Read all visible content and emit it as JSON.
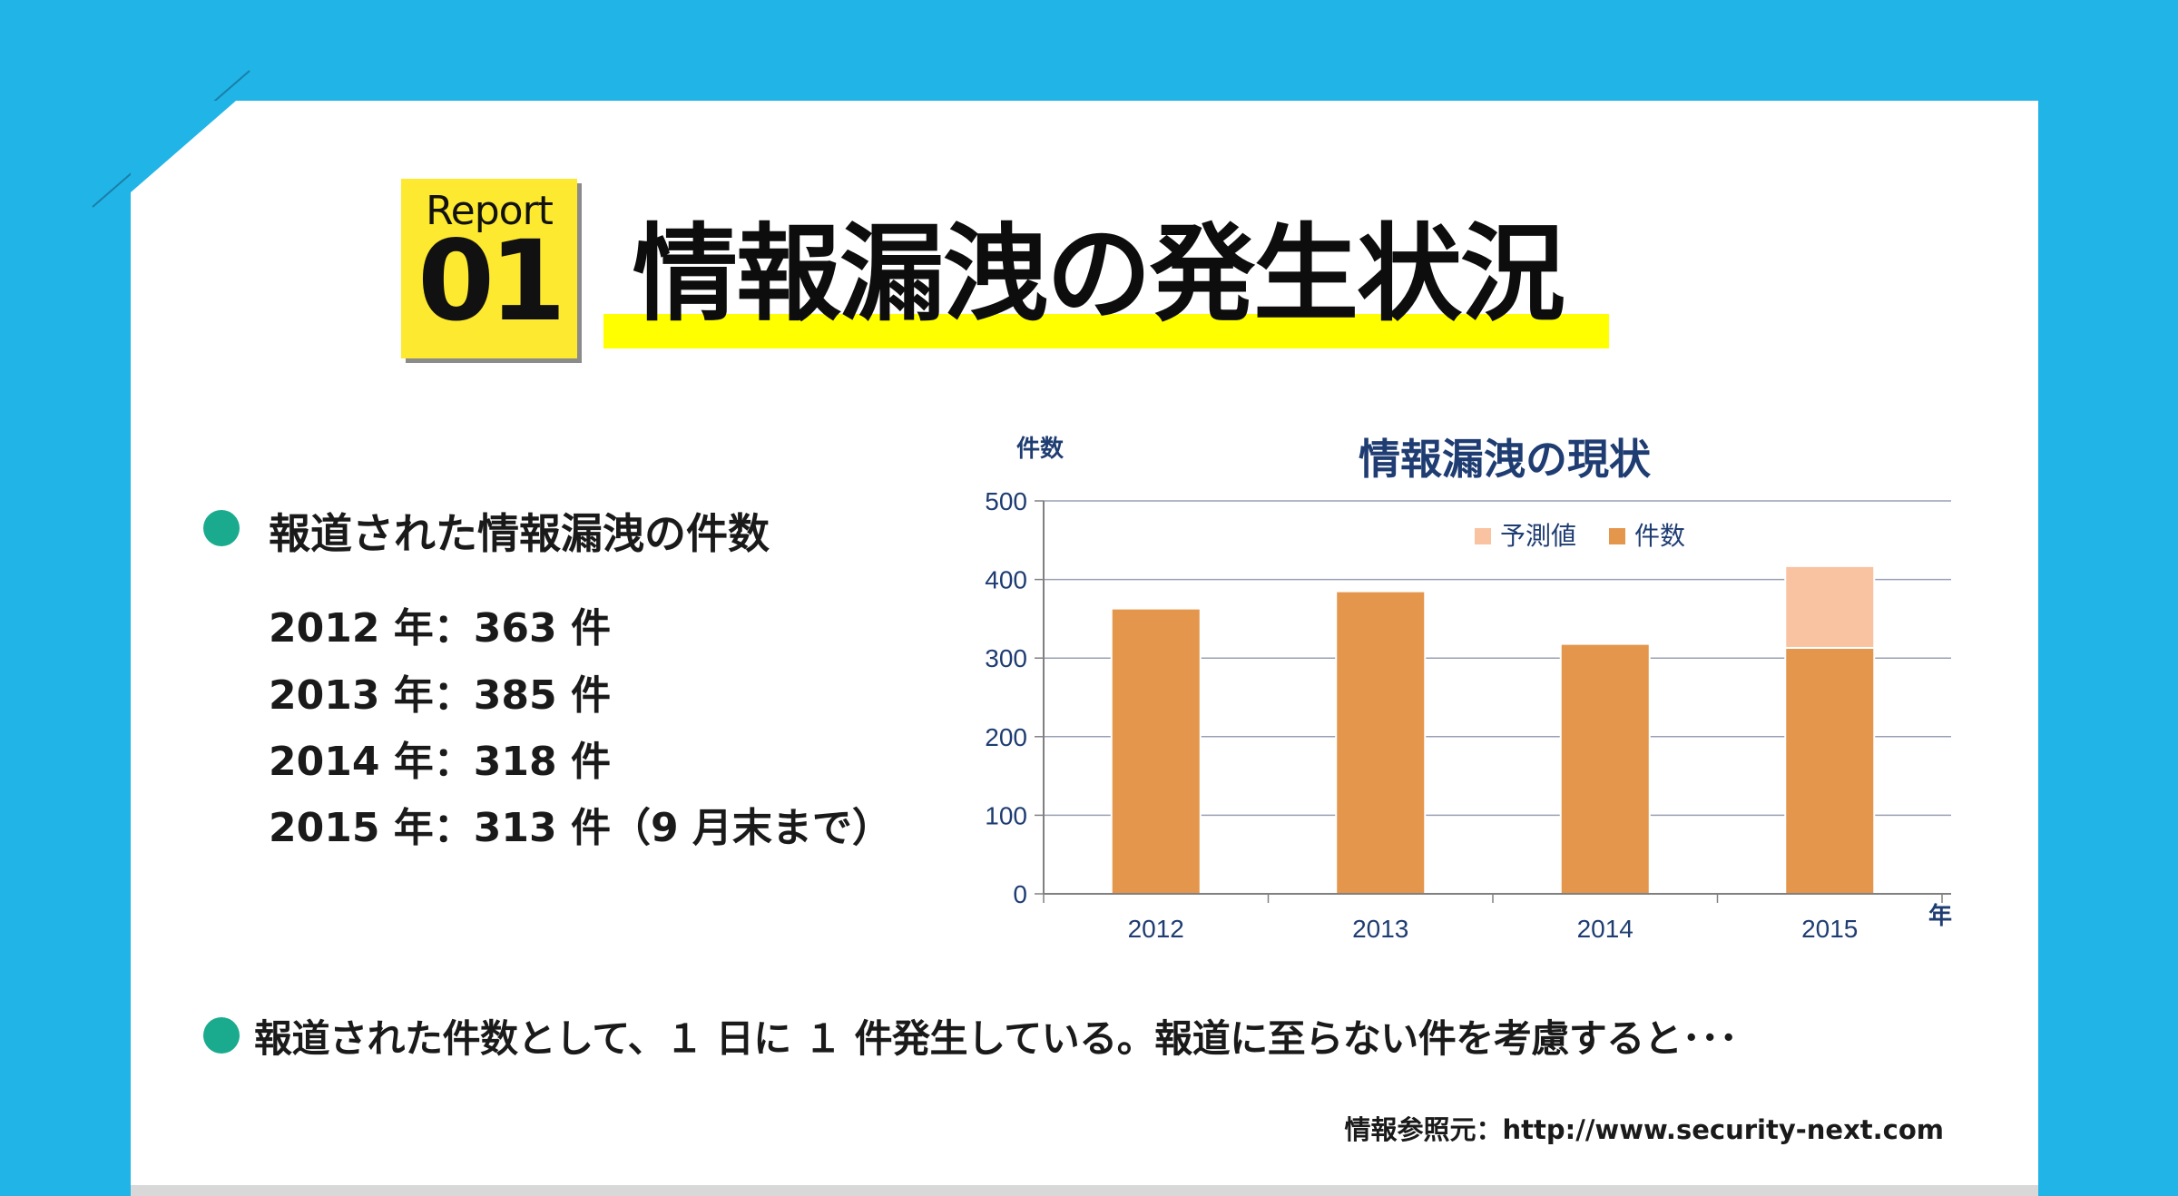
{
  "badge": {
    "label": "Report",
    "number": "01"
  },
  "header": {
    "title": "情報漏洩の発生状況"
  },
  "left_panel": {
    "heading": "報道された情報漏洩の件数",
    "stats": [
      "2012 年：363 件",
      "2013 年：385 件",
      "2014 年：318 件",
      "2015 年：313 件（9 月末まで）"
    ]
  },
  "summary": {
    "text": "報道された件数として、１ 日に １ 件発生している。報道に至らない件を考慮すると･･･"
  },
  "footer": {
    "source": "情報参照元：http://www.security-next.com"
  },
  "colors": {
    "background": "#21b4e6",
    "badge": "#fde92f",
    "highlight": "#ffff00",
    "bullet": "#1aab8e",
    "bar_actual": "#e3964c",
    "bar_forecast": "#f9c2a0",
    "chart_text": "#1f3d72"
  },
  "chart_data": {
    "type": "bar",
    "title": "情報漏洩の現状",
    "ylabel": "件数",
    "xlabel": "年",
    "categories": [
      "2012",
      "2013",
      "2014",
      "2015"
    ],
    "series": [
      {
        "name": "件数",
        "values": [
          363,
          385,
          318,
          313
        ]
      },
      {
        "name": "予測値",
        "values": [
          0,
          0,
          0,
          104
        ]
      }
    ],
    "stacked": true,
    "ylim": [
      0,
      500
    ],
    "yticks": [
      0,
      100,
      200,
      300,
      400,
      500
    ],
    "grid": true,
    "legend": "top-right",
    "legend_order": [
      "予測値",
      "件数"
    ]
  }
}
